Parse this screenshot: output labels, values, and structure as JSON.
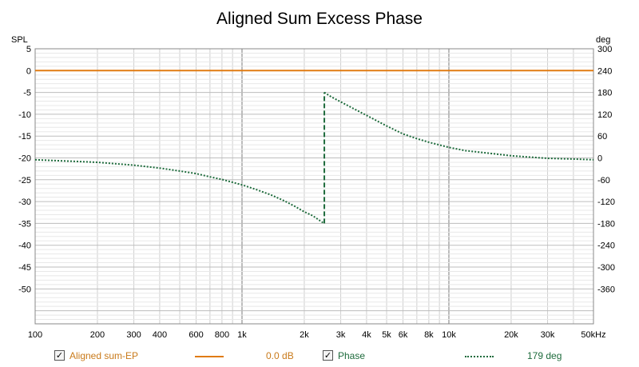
{
  "chart_data": {
    "type": "line",
    "title": "Aligned Sum Excess Phase",
    "y_left_unit": "SPL",
    "y_right_unit": "deg",
    "x_scale": "log",
    "xlim": [
      100,
      50000
    ],
    "ylim_left": [
      -58,
      5
    ],
    "ylim_right": [
      -456,
      300
    ],
    "x_tick_labels": [
      {
        "value": 100,
        "label": "100"
      },
      {
        "value": 200,
        "label": "200"
      },
      {
        "value": 300,
        "label": "300"
      },
      {
        "value": 400,
        "label": "400"
      },
      {
        "value": 600,
        "label": "600"
      },
      {
        "value": 800,
        "label": "800"
      },
      {
        "value": 1000,
        "label": "1k"
      },
      {
        "value": 2000,
        "label": "2k"
      },
      {
        "value": 3000,
        "label": "3k"
      },
      {
        "value": 4000,
        "label": "4k"
      },
      {
        "value": 5000,
        "label": "5k"
      },
      {
        "value": 6000,
        "label": "6k"
      },
      {
        "value": 8000,
        "label": "8k"
      },
      {
        "value": 10000,
        "label": "10k"
      },
      {
        "value": 20000,
        "label": "20k"
      },
      {
        "value": 30000,
        "label": "30k"
      },
      {
        "value": 50000,
        "label": "50kHz"
      }
    ],
    "y_left_ticks": [
      "5",
      "0",
      "-5",
      "-10",
      "-15",
      "-20",
      "-25",
      "-30",
      "-35",
      "-40",
      "-45",
      "-50"
    ],
    "y_right_ticks": [
      "300",
      "240",
      "180",
      "120",
      "60",
      "0",
      "-60",
      "-120",
      "-180",
      "-240",
      "-300",
      "-360"
    ],
    "grid": true,
    "legend_position": "bottom",
    "series": [
      {
        "name": "Aligned sum-EP",
        "axis": "left",
        "color": "#e07b12",
        "style": "solid",
        "readout": "0.0 dB",
        "checked": true,
        "x": [
          100,
          50000
        ],
        "y": [
          0,
          0
        ]
      },
      {
        "name": "Phase",
        "axis": "right",
        "color": "#1e6b3c",
        "style": "dotted",
        "readout": "179 deg",
        "checked": true,
        "x": [
          100,
          200,
          300,
          400,
          500,
          600,
          700,
          800,
          900,
          1000,
          1200,
          1400,
          1600,
          1800,
          2000,
          2200,
          2400,
          2500,
          2500,
          2700,
          3000,
          3500,
          4000,
          5000,
          6000,
          7000,
          8000,
          10000,
          12000,
          15000,
          20000,
          25000,
          30000,
          40000,
          50000
        ],
        "y": [
          -5,
          -12,
          -20,
          -28,
          -36,
          -43,
          -52,
          -59,
          -67,
          -74,
          -89,
          -103,
          -118,
          -133,
          -148,
          -159,
          -174,
          -180,
          180,
          168,
          154,
          134,
          117,
          88,
          66,
          53,
          43,
          29,
          20,
          14,
          6,
          2,
          -1,
          -3,
          -5
        ]
      }
    ]
  }
}
